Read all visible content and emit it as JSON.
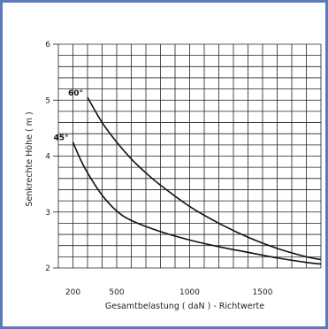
{
  "chart_data": {
    "type": "line",
    "title": "",
    "xlabel": "Gesamtbelastung ( daN ) - Richtwerte",
    "ylabel": "Senkrechte Höhe ( m )",
    "xlim": [
      100,
      1900
    ],
    "ylim": [
      2,
      6
    ],
    "x_ticks": [
      "200",
      "500",
      "1000",
      "1500"
    ],
    "y_ticks": [
      "2",
      "3",
      "4",
      "5",
      "6"
    ],
    "grid": true,
    "series": [
      {
        "name": "60°",
        "x": [
          300,
          400,
          500,
          600,
          700,
          800,
          1000,
          1200,
          1400,
          1600,
          1800,
          1900
        ],
        "y": [
          5.05,
          4.6,
          4.25,
          3.95,
          3.7,
          3.48,
          3.1,
          2.8,
          2.55,
          2.35,
          2.2,
          2.15
        ]
      },
      {
        "name": "45°",
        "x": [
          200,
          250,
          300,
          400,
          500,
          600,
          800,
          1000,
          1200,
          1400,
          1600,
          1800,
          1900
        ],
        "y": [
          4.25,
          3.95,
          3.7,
          3.3,
          3.02,
          2.85,
          2.65,
          2.5,
          2.38,
          2.28,
          2.18,
          2.1,
          2.07
        ]
      }
    ]
  }
}
